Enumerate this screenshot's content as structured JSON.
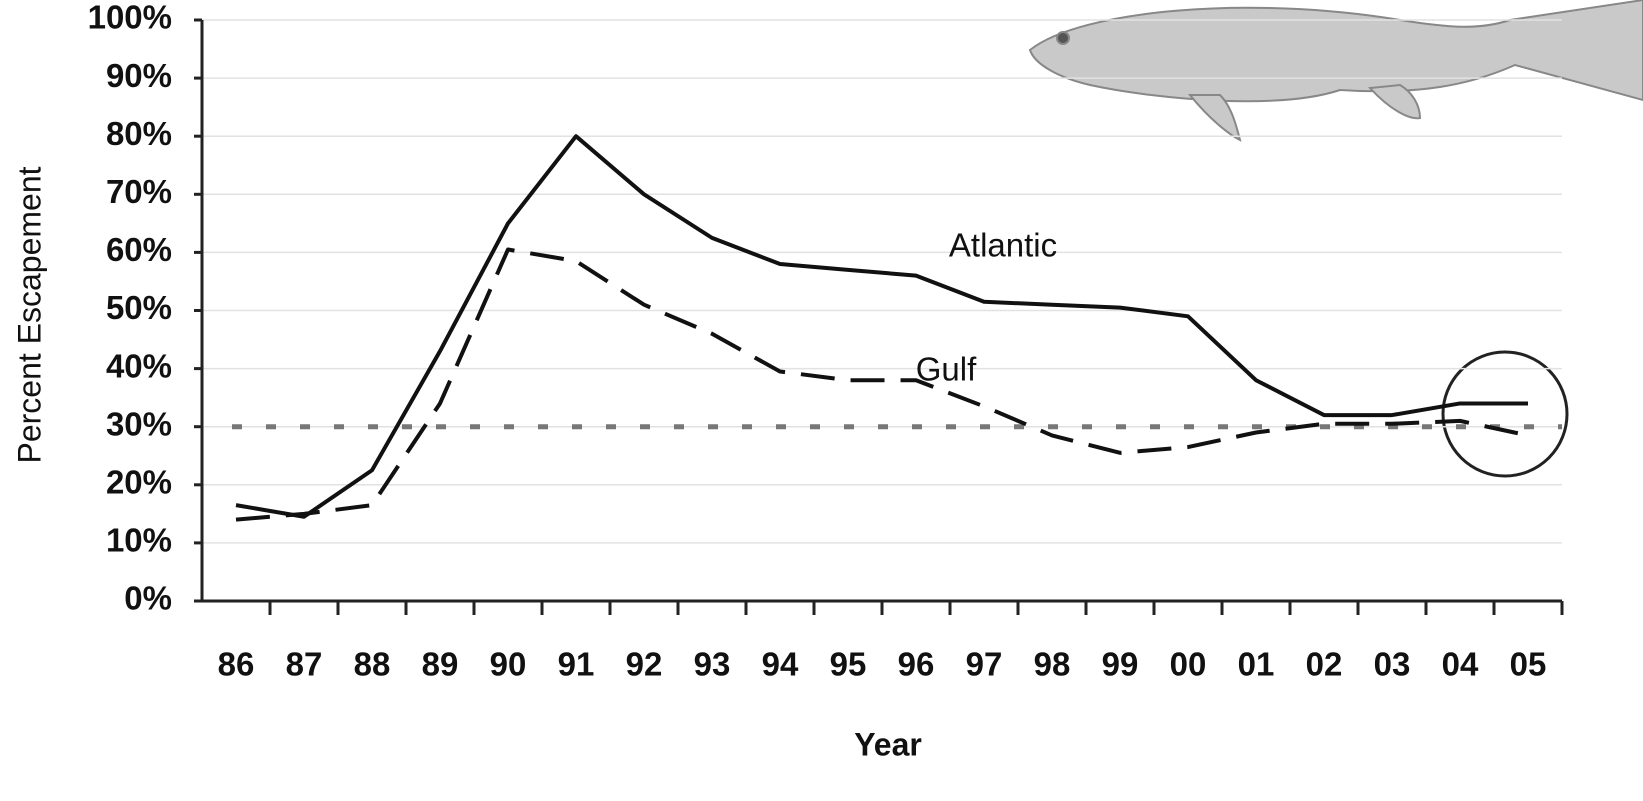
{
  "chart_data": {
    "type": "line",
    "x_label": "Year",
    "y_label": "Percent Escapement",
    "categories": [
      "86",
      "87",
      "88",
      "89",
      "90",
      "91",
      "92",
      "93",
      "94",
      "95",
      "96",
      "97",
      "98",
      "99",
      "00",
      "01",
      "02",
      "03",
      "04",
      "05"
    ],
    "series": [
      {
        "name": "Atlantic",
        "color": "#111111",
        "dash": "none",
        "values": [
          16.5,
          14.5,
          22.5,
          43,
          65,
          80,
          70,
          62.5,
          58,
          57,
          56,
          51.5,
          51,
          50.5,
          49,
          38,
          32,
          32,
          34,
          34
        ]
      },
      {
        "name": "Gulf",
        "color": "#111111",
        "dash": "34 16",
        "values": [
          14,
          15,
          16.5,
          34,
          60.5,
          58.5,
          51,
          46,
          39.5,
          38,
          38,
          33.5,
          28.5,
          25.5,
          26.5,
          29,
          30.5,
          30.5,
          31,
          28.5
        ]
      }
    ],
    "reference_line": 30,
    "ylim": [
      0,
      100
    ],
    "yticks": [
      {
        "value": 0,
        "label": "0%"
      },
      {
        "value": 10,
        "label": "10%"
      },
      {
        "value": 20,
        "label": "20%"
      },
      {
        "value": 30,
        "label": "30%"
      },
      {
        "value": 40,
        "label": "40%"
      },
      {
        "value": 50,
        "label": "50%"
      },
      {
        "value": 60,
        "label": "60%"
      },
      {
        "value": 70,
        "label": "70%"
      },
      {
        "value": 80,
        "label": "80%"
      },
      {
        "value": 90,
        "label": "90%"
      },
      {
        "value": 100,
        "label": "100%"
      }
    ],
    "grid": true
  }
}
